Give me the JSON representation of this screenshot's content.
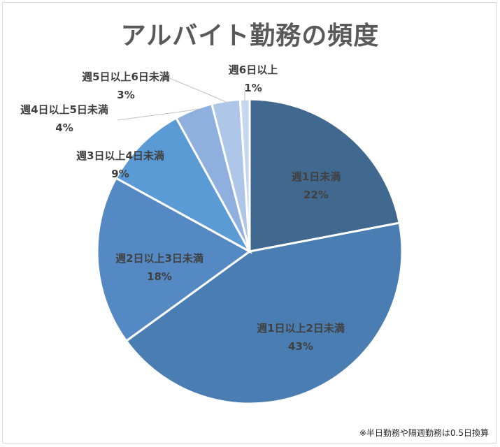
{
  "chart_data": {
    "type": "pie",
    "title": "アルバイト勤務の頻度",
    "start_angle": "12 o'clock, clockwise",
    "slices": [
      {
        "label": "週1日未満",
        "value": 22,
        "pct_label": "22%",
        "color": "#41698f"
      },
      {
        "label": "週1日以上2日未満",
        "value": 43,
        "pct_label": "43%",
        "color": "#4a7db2"
      },
      {
        "label": "週2日以上3日未満",
        "value": 18,
        "pct_label": "18%",
        "color": "#5589c4"
      },
      {
        "label": "週3日以上4日未満",
        "value": 9,
        "pct_label": "9%",
        "color": "#5b9bd5"
      },
      {
        "label": "週4日以上5日未満",
        "value": 4,
        "pct_label": "4%",
        "color": "#8fb0de"
      },
      {
        "label": "週5日以上6日未満",
        "value": 3,
        "pct_label": "3%",
        "color": "#aec6e8"
      },
      {
        "label": "週6日以上",
        "value": 1,
        "pct_label": "1%",
        "color": "#c7d7ef"
      }
    ]
  },
  "footnote": "※半日勤務や隔週勤務は0.5日換算"
}
